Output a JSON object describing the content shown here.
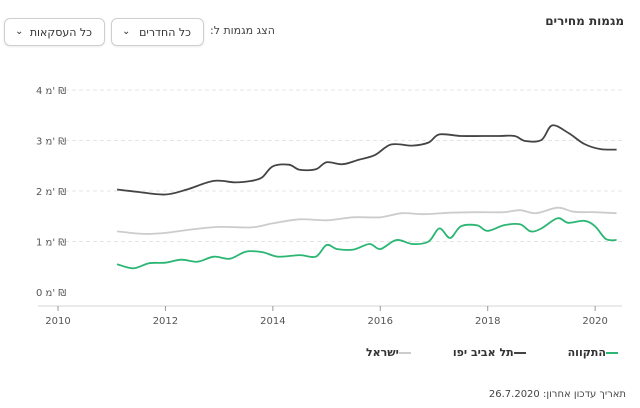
{
  "header": {
    "title": "מגמות מחירים",
    "show_label": "הצג מגמות ל:",
    "rooms_dropdown": "כל החדרים",
    "deals_dropdown": "כל העסקאות"
  },
  "footer": {
    "updated_prefix": "תאריך עדכון אחרון:",
    "updated_date": "26.7.2020"
  },
  "legend_items": [
    {
      "name": "התקווה",
      "color": "#2bb673"
    },
    {
      "name": "תל אביב יפו",
      "color": "#444444"
    },
    {
      "name": "ישראל",
      "color": "#cccccc"
    }
  ],
  "chart_data": {
    "type": "line",
    "xlim": [
      2010,
      2020.5
    ],
    "ylim": [
      0,
      4
    ],
    "x_ticks": [
      "2010",
      "2012",
      "2014",
      "2016",
      "2018",
      "2020"
    ],
    "y_ticks": [
      "0 מ' ₪",
      "1 מ' ₪",
      "2 מ' ₪",
      "3 מ' ₪",
      "4 מ' ₪"
    ],
    "series": [
      {
        "name": "תל אביב יפו",
        "color": "#444444",
        "points": [
          [
            2011.1,
            2.03
          ],
          [
            2011.5,
            1.98
          ],
          [
            2012.0,
            1.93
          ],
          [
            2012.4,
            2.03
          ],
          [
            2012.9,
            2.2
          ],
          [
            2013.3,
            2.17
          ],
          [
            2013.6,
            2.2
          ],
          [
            2013.8,
            2.27
          ],
          [
            2014.0,
            2.49
          ],
          [
            2014.3,
            2.52
          ],
          [
            2014.5,
            2.42
          ],
          [
            2014.8,
            2.43
          ],
          [
            2015.0,
            2.57
          ],
          [
            2015.3,
            2.53
          ],
          [
            2015.6,
            2.62
          ],
          [
            2015.9,
            2.71
          ],
          [
            2016.2,
            2.92
          ],
          [
            2016.6,
            2.9
          ],
          [
            2016.9,
            2.96
          ],
          [
            2017.1,
            3.12
          ],
          [
            2017.5,
            3.09
          ],
          [
            2017.9,
            3.09
          ],
          [
            2018.2,
            3.09
          ],
          [
            2018.5,
            3.09
          ],
          [
            2018.7,
            2.99
          ],
          [
            2019.0,
            3.01
          ],
          [
            2019.2,
            3.3
          ],
          [
            2019.5,
            3.15
          ],
          [
            2019.8,
            2.93
          ],
          [
            2020.1,
            2.83
          ],
          [
            2020.4,
            2.82
          ]
        ]
      },
      {
        "name": "ישראל",
        "color": "#cccccc",
        "points": [
          [
            2011.1,
            1.2
          ],
          [
            2011.6,
            1.15
          ],
          [
            2012.0,
            1.17
          ],
          [
            2012.5,
            1.24
          ],
          [
            2013.0,
            1.29
          ],
          [
            2013.6,
            1.28
          ],
          [
            2014.0,
            1.36
          ],
          [
            2014.5,
            1.44
          ],
          [
            2015.0,
            1.42
          ],
          [
            2015.5,
            1.48
          ],
          [
            2016.0,
            1.48
          ],
          [
            2016.4,
            1.56
          ],
          [
            2016.8,
            1.54
          ],
          [
            2017.3,
            1.57
          ],
          [
            2017.8,
            1.58
          ],
          [
            2018.3,
            1.58
          ],
          [
            2018.6,
            1.62
          ],
          [
            2018.9,
            1.56
          ],
          [
            2019.3,
            1.67
          ],
          [
            2019.6,
            1.59
          ],
          [
            2020.0,
            1.58
          ],
          [
            2020.4,
            1.56
          ]
        ]
      },
      {
        "name": "התקווה",
        "color": "#2bb673",
        "points": [
          [
            2011.1,
            0.55
          ],
          [
            2011.4,
            0.47
          ],
          [
            2011.7,
            0.57
          ],
          [
            2012.0,
            0.58
          ],
          [
            2012.3,
            0.64
          ],
          [
            2012.6,
            0.6
          ],
          [
            2012.9,
            0.7
          ],
          [
            2013.2,
            0.66
          ],
          [
            2013.5,
            0.8
          ],
          [
            2013.8,
            0.79
          ],
          [
            2014.1,
            0.7
          ],
          [
            2014.5,
            0.73
          ],
          [
            2014.8,
            0.7
          ],
          [
            2015.0,
            0.93
          ],
          [
            2015.2,
            0.85
          ],
          [
            2015.5,
            0.84
          ],
          [
            2015.8,
            0.95
          ],
          [
            2016.0,
            0.85
          ],
          [
            2016.3,
            1.03
          ],
          [
            2016.6,
            0.95
          ],
          [
            2016.9,
            1.0
          ],
          [
            2017.1,
            1.26
          ],
          [
            2017.3,
            1.07
          ],
          [
            2017.5,
            1.3
          ],
          [
            2017.8,
            1.32
          ],
          [
            2018.0,
            1.21
          ],
          [
            2018.3,
            1.32
          ],
          [
            2018.6,
            1.34
          ],
          [
            2018.8,
            1.2
          ],
          [
            2019.0,
            1.26
          ],
          [
            2019.3,
            1.46
          ],
          [
            2019.5,
            1.37
          ],
          [
            2019.8,
            1.41
          ],
          [
            2020.0,
            1.3
          ],
          [
            2020.2,
            1.05
          ],
          [
            2020.4,
            1.03
          ]
        ]
      }
    ]
  }
}
